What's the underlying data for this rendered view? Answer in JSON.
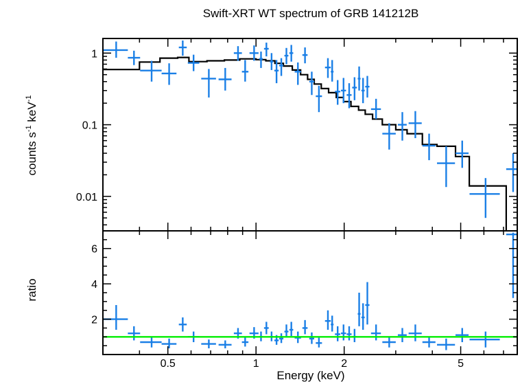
{
  "chart_data": [
    {
      "type": "scatter",
      "title": "Swift-XRT WT spectrum of GRB 141212B",
      "ylabel_main": "counts s",
      "ylabel_sup1": "-1",
      "ylabel_mid": " keV",
      "ylabel_sup2": "-1",
      "xscale": "log",
      "yscale": "log",
      "xlim": [
        0.3,
        7.8
      ],
      "ylim": [
        0.0033,
        1.6
      ],
      "xticks": [
        {
          "v": 0.5,
          "label": "0.5"
        },
        {
          "v": 1,
          "label": "1"
        },
        {
          "v": 2,
          "label": "2"
        },
        {
          "v": 5,
          "label": "5"
        }
      ],
      "yticks": [
        {
          "v": 1,
          "label": "1"
        },
        {
          "v": 0.1,
          "label": "0.1"
        },
        {
          "v": 0.01,
          "label": "0.01"
        }
      ],
      "colors": {
        "data": "#1a7fe6",
        "model": "#000000"
      },
      "data": [
        {
          "x": 0.333,
          "xlo": 0.3,
          "xhi": 0.365,
          "y": 1.1,
          "ylo": 0.86,
          "yhi": 1.45
        },
        {
          "x": 0.383,
          "xlo": 0.365,
          "xhi": 0.402,
          "y": 0.86,
          "ylo": 0.68,
          "yhi": 1.08
        },
        {
          "x": 0.44,
          "xlo": 0.402,
          "xhi": 0.476,
          "y": 0.57,
          "ylo": 0.4,
          "yhi": 0.78
        },
        {
          "x": 0.505,
          "xlo": 0.476,
          "xhi": 0.535,
          "y": 0.52,
          "ylo": 0.36,
          "yhi": 0.72
        },
        {
          "x": 0.562,
          "xlo": 0.545,
          "xhi": 0.58,
          "y": 1.2,
          "ylo": 0.92,
          "yhi": 1.5
        },
        {
          "x": 0.612,
          "xlo": 0.585,
          "xhi": 0.64,
          "y": 0.73,
          "ylo": 0.56,
          "yhi": 0.95
        },
        {
          "x": 0.69,
          "xlo": 0.65,
          "xhi": 0.73,
          "y": 0.44,
          "ylo": 0.24,
          "yhi": 0.6
        },
        {
          "x": 0.785,
          "xlo": 0.745,
          "xhi": 0.825,
          "y": 0.43,
          "ylo": 0.3,
          "yhi": 0.62
        },
        {
          "x": 0.868,
          "xlo": 0.84,
          "xhi": 0.895,
          "y": 1.0,
          "ylo": 0.78,
          "yhi": 1.25
        },
        {
          "x": 0.918,
          "xlo": 0.895,
          "xhi": 0.942,
          "y": 0.55,
          "ylo": 0.4,
          "yhi": 0.8
        },
        {
          "x": 0.985,
          "xlo": 0.95,
          "xhi": 1.02,
          "y": 1.0,
          "ylo": 0.78,
          "yhi": 1.28
        },
        {
          "x": 1.04,
          "xlo": 1.025,
          "xhi": 1.055,
          "y": 0.83,
          "ylo": 0.62,
          "yhi": 1.05
        },
        {
          "x": 1.085,
          "xlo": 1.065,
          "xhi": 1.105,
          "y": 1.15,
          "ylo": 0.9,
          "yhi": 1.4
        },
        {
          "x": 1.13,
          "xlo": 1.115,
          "xhi": 1.145,
          "y": 0.76,
          "ylo": 0.58,
          "yhi": 1.0
        },
        {
          "x": 1.175,
          "xlo": 1.155,
          "xhi": 1.195,
          "y": 0.57,
          "ylo": 0.38,
          "yhi": 0.8
        },
        {
          "x": 1.22,
          "xlo": 1.2,
          "xhi": 1.24,
          "y": 0.67,
          "ylo": 0.48,
          "yhi": 0.85
        },
        {
          "x": 1.27,
          "xlo": 1.25,
          "xhi": 1.29,
          "y": 0.92,
          "ylo": 0.7,
          "yhi": 1.18
        },
        {
          "x": 1.32,
          "xlo": 1.3,
          "xhi": 1.34,
          "y": 1.0,
          "ylo": 0.76,
          "yhi": 1.3
        },
        {
          "x": 1.39,
          "xlo": 1.355,
          "xhi": 1.425,
          "y": 0.55,
          "ylo": 0.36,
          "yhi": 0.74
        },
        {
          "x": 1.47,
          "xlo": 1.44,
          "xhi": 1.5,
          "y": 0.94,
          "ylo": 0.72,
          "yhi": 1.2
        },
        {
          "x": 1.55,
          "xlo": 1.52,
          "xhi": 1.58,
          "y": 0.4,
          "ylo": 0.26,
          "yhi": 0.55
        },
        {
          "x": 1.64,
          "xlo": 1.6,
          "xhi": 1.68,
          "y": 0.25,
          "ylo": 0.15,
          "yhi": 0.35
        },
        {
          "x": 1.76,
          "xlo": 1.72,
          "xhi": 1.8,
          "y": 0.63,
          "ylo": 0.45,
          "yhi": 0.85
        },
        {
          "x": 1.82,
          "xlo": 1.8,
          "xhi": 1.84,
          "y": 0.55,
          "ylo": 0.4,
          "yhi": 0.8
        },
        {
          "x": 1.9,
          "xlo": 1.86,
          "xhi": 1.94,
          "y": 0.29,
          "ylo": 0.19,
          "yhi": 0.42
        },
        {
          "x": 1.99,
          "xlo": 1.95,
          "xhi": 2.03,
          "y": 0.3,
          "ylo": 0.2,
          "yhi": 0.45
        },
        {
          "x": 2.08,
          "xlo": 2.04,
          "xhi": 2.12,
          "y": 0.26,
          "ylo": 0.17,
          "yhi": 0.38
        },
        {
          "x": 2.17,
          "xlo": 2.13,
          "xhi": 2.21,
          "y": 0.33,
          "ylo": 0.22,
          "yhi": 0.46
        },
        {
          "x": 2.25,
          "xlo": 2.225,
          "xhi": 2.275,
          "y": 0.44,
          "ylo": 0.3,
          "yhi": 0.65
        },
        {
          "x": 2.32,
          "xlo": 2.29,
          "xhi": 2.35,
          "y": 0.3,
          "ylo": 0.2,
          "yhi": 0.45
        },
        {
          "x": 2.4,
          "xlo": 2.36,
          "xhi": 2.44,
          "y": 0.34,
          "ylo": 0.24,
          "yhi": 0.48
        },
        {
          "x": 2.57,
          "xlo": 2.47,
          "xhi": 2.67,
          "y": 0.165,
          "ylo": 0.12,
          "yhi": 0.23
        },
        {
          "x": 2.85,
          "xlo": 2.7,
          "xhi": 3.0,
          "y": 0.075,
          "ylo": 0.045,
          "yhi": 0.105
        },
        {
          "x": 3.16,
          "xlo": 3.05,
          "xhi": 3.27,
          "y": 0.1,
          "ylo": 0.06,
          "yhi": 0.15
        },
        {
          "x": 3.5,
          "xlo": 3.32,
          "xhi": 3.68,
          "y": 0.105,
          "ylo": 0.065,
          "yhi": 0.155
        },
        {
          "x": 3.9,
          "xlo": 3.7,
          "xhi": 4.1,
          "y": 0.051,
          "ylo": 0.032,
          "yhi": 0.075
        },
        {
          "x": 4.46,
          "xlo": 4.15,
          "xhi": 4.78,
          "y": 0.029,
          "ylo": 0.0135,
          "yhi": 0.05
        },
        {
          "x": 5.06,
          "xlo": 4.8,
          "xhi": 5.32,
          "y": 0.04,
          "ylo": 0.025,
          "yhi": 0.06
        },
        {
          "x": 6.08,
          "xlo": 5.36,
          "xhi": 6.8,
          "y": 0.0108,
          "ylo": 0.005,
          "yhi": 0.018
        },
        {
          "x": 7.55,
          "xlo": 7.15,
          "xhi": 7.8,
          "y": 0.024,
          "ylo": 0.0115,
          "yhi": 0.04
        }
      ],
      "model": [
        [
          0.3,
          0.59
        ],
        [
          0.4,
          0.59
        ],
        [
          0.4,
          0.75
        ],
        [
          0.47,
          0.75
        ],
        [
          0.47,
          0.85
        ],
        [
          0.54,
          0.85
        ],
        [
          0.54,
          0.87
        ],
        [
          0.59,
          0.87
        ],
        [
          0.59,
          0.76
        ],
        [
          0.68,
          0.76
        ],
        [
          0.68,
          0.78
        ],
        [
          0.78,
          0.78
        ],
        [
          0.78,
          0.8
        ],
        [
          0.88,
          0.8
        ],
        [
          0.88,
          0.83
        ],
        [
          1.0,
          0.83
        ],
        [
          1.0,
          0.81
        ],
        [
          1.08,
          0.81
        ],
        [
          1.08,
          0.78
        ],
        [
          1.16,
          0.78
        ],
        [
          1.16,
          0.72
        ],
        [
          1.24,
          0.72
        ],
        [
          1.24,
          0.66
        ],
        [
          1.33,
          0.66
        ],
        [
          1.33,
          0.58
        ],
        [
          1.42,
          0.58
        ],
        [
          1.42,
          0.5
        ],
        [
          1.5,
          0.5
        ],
        [
          1.5,
          0.43
        ],
        [
          1.58,
          0.43
        ],
        [
          1.58,
          0.37
        ],
        [
          1.67,
          0.37
        ],
        [
          1.67,
          0.32
        ],
        [
          1.77,
          0.32
        ],
        [
          1.77,
          0.28
        ],
        [
          1.88,
          0.28
        ],
        [
          1.88,
          0.24
        ],
        [
          1.99,
          0.24
        ],
        [
          1.99,
          0.21
        ],
        [
          2.11,
          0.21
        ],
        [
          2.11,
          0.18
        ],
        [
          2.24,
          0.18
        ],
        [
          2.24,
          0.16
        ],
        [
          2.36,
          0.16
        ],
        [
          2.36,
          0.14
        ],
        [
          2.5,
          0.14
        ],
        [
          2.5,
          0.12
        ],
        [
          2.7,
          0.12
        ],
        [
          2.7,
          0.1
        ],
        [
          3.0,
          0.1
        ],
        [
          3.0,
          0.085
        ],
        [
          3.28,
          0.085
        ],
        [
          3.28,
          0.075
        ],
        [
          3.7,
          0.075
        ],
        [
          3.7,
          0.053
        ],
        [
          4.15,
          0.053
        ],
        [
          4.15,
          0.05
        ],
        [
          4.8,
          0.05
        ],
        [
          4.8,
          0.036
        ],
        [
          5.35,
          0.036
        ],
        [
          5.35,
          0.014
        ],
        [
          7.15,
          0.014
        ],
        [
          7.15,
          0.0033
        ]
      ]
    },
    {
      "type": "scatter",
      "ylabel": "ratio",
      "xlabel": "Energy (keV)",
      "xscale": "log",
      "xlim": [
        0.3,
        7.8
      ],
      "ylim": [
        0.0,
        7.0
      ],
      "yticks": [
        {
          "v": 2,
          "label": "2"
        },
        {
          "v": 4,
          "label": "4"
        },
        {
          "v": 6,
          "label": "6"
        }
      ],
      "reference_line": 1.0,
      "colors": {
        "data": "#1a7fe6",
        "reference": "#00ee00"
      },
      "data": [
        {
          "x": 0.333,
          "xlo": 0.3,
          "xhi": 0.365,
          "y": 2.0,
          "ylo": 1.4,
          "yhi": 2.8
        },
        {
          "x": 0.383,
          "xlo": 0.365,
          "xhi": 0.402,
          "y": 1.2,
          "ylo": 0.8,
          "yhi": 1.6
        },
        {
          "x": 0.44,
          "xlo": 0.402,
          "xhi": 0.476,
          "y": 0.7,
          "ylo": 0.4,
          "yhi": 1.0
        },
        {
          "x": 0.505,
          "xlo": 0.476,
          "xhi": 0.535,
          "y": 0.6,
          "ylo": 0.35,
          "yhi": 0.9
        },
        {
          "x": 0.562,
          "xlo": 0.545,
          "xhi": 0.58,
          "y": 1.7,
          "ylo": 1.3,
          "yhi": 2.1
        },
        {
          "x": 0.612,
          "xlo": 0.585,
          "xhi": 0.64,
          "y": 1.0,
          "ylo": 0.7,
          "yhi": 1.3
        },
        {
          "x": 0.69,
          "xlo": 0.65,
          "xhi": 0.73,
          "y": 0.6,
          "ylo": 0.35,
          "yhi": 0.85
        },
        {
          "x": 0.785,
          "xlo": 0.745,
          "xhi": 0.825,
          "y": 0.55,
          "ylo": 0.35,
          "yhi": 0.8
        },
        {
          "x": 0.868,
          "xlo": 0.84,
          "xhi": 0.895,
          "y": 1.2,
          "ylo": 0.9,
          "yhi": 1.5
        },
        {
          "x": 0.918,
          "xlo": 0.895,
          "xhi": 0.942,
          "y": 0.7,
          "ylo": 0.45,
          "yhi": 1.0
        },
        {
          "x": 0.985,
          "xlo": 0.95,
          "xhi": 1.02,
          "y": 1.2,
          "ylo": 0.9,
          "yhi": 1.55
        },
        {
          "x": 1.04,
          "xlo": 1.025,
          "xhi": 1.055,
          "y": 1.0,
          "ylo": 0.75,
          "yhi": 1.3
        },
        {
          "x": 1.085,
          "xlo": 1.065,
          "xhi": 1.105,
          "y": 1.5,
          "ylo": 1.15,
          "yhi": 1.85
        },
        {
          "x": 1.13,
          "xlo": 1.115,
          "xhi": 1.145,
          "y": 1.0,
          "ylo": 0.75,
          "yhi": 1.3
        },
        {
          "x": 1.175,
          "xlo": 1.155,
          "xhi": 1.195,
          "y": 0.8,
          "ylo": 0.55,
          "yhi": 1.1
        },
        {
          "x": 1.22,
          "xlo": 1.2,
          "xhi": 1.24,
          "y": 0.9,
          "ylo": 0.65,
          "yhi": 1.2
        },
        {
          "x": 1.27,
          "xlo": 1.25,
          "xhi": 1.29,
          "y": 1.3,
          "ylo": 1.0,
          "yhi": 1.7
        },
        {
          "x": 1.32,
          "xlo": 1.3,
          "xhi": 1.34,
          "y": 1.4,
          "ylo": 1.05,
          "yhi": 1.85
        },
        {
          "x": 1.39,
          "xlo": 1.355,
          "xhi": 1.425,
          "y": 0.95,
          "ylo": 0.65,
          "yhi": 1.3
        },
        {
          "x": 1.47,
          "xlo": 1.44,
          "xhi": 1.5,
          "y": 1.5,
          "ylo": 1.15,
          "yhi": 1.95
        },
        {
          "x": 1.55,
          "xlo": 1.52,
          "xhi": 1.58,
          "y": 0.9,
          "ylo": 0.6,
          "yhi": 1.25
        },
        {
          "x": 1.64,
          "xlo": 1.6,
          "xhi": 1.68,
          "y": 0.65,
          "ylo": 0.4,
          "yhi": 0.95
        },
        {
          "x": 1.76,
          "xlo": 1.72,
          "xhi": 1.8,
          "y": 1.9,
          "ylo": 1.4,
          "yhi": 2.5
        },
        {
          "x": 1.82,
          "xlo": 1.8,
          "xhi": 1.84,
          "y": 1.7,
          "ylo": 1.3,
          "yhi": 2.2
        },
        {
          "x": 1.9,
          "xlo": 1.86,
          "xhi": 1.94,
          "y": 1.15,
          "ylo": 0.75,
          "yhi": 1.6
        },
        {
          "x": 1.99,
          "xlo": 1.95,
          "xhi": 2.03,
          "y": 1.2,
          "ylo": 0.8,
          "yhi": 1.7
        },
        {
          "x": 2.08,
          "xlo": 2.04,
          "xhi": 2.12,
          "y": 1.15,
          "ylo": 0.8,
          "yhi": 1.6
        },
        {
          "x": 2.17,
          "xlo": 2.13,
          "xhi": 2.21,
          "y": 1.0,
          "ylo": 0.7,
          "yhi": 1.45
        },
        {
          "x": 2.25,
          "xlo": 2.225,
          "xhi": 2.275,
          "y": 2.3,
          "ylo": 1.6,
          "yhi": 3.5
        },
        {
          "x": 2.32,
          "xlo": 2.29,
          "xhi": 2.35,
          "y": 2.1,
          "ylo": 1.4,
          "yhi": 2.9
        },
        {
          "x": 2.4,
          "xlo": 2.36,
          "xhi": 2.44,
          "y": 2.8,
          "ylo": 1.7,
          "yhi": 4.1
        },
        {
          "x": 2.57,
          "xlo": 2.47,
          "xhi": 2.67,
          "y": 1.2,
          "ylo": 0.8,
          "yhi": 1.7
        },
        {
          "x": 2.85,
          "xlo": 2.7,
          "xhi": 3.0,
          "y": 0.7,
          "ylo": 0.4,
          "yhi": 1.0
        },
        {
          "x": 3.16,
          "xlo": 3.05,
          "xhi": 3.27,
          "y": 1.1,
          "ylo": 0.7,
          "yhi": 1.5
        },
        {
          "x": 3.5,
          "xlo": 3.32,
          "xhi": 3.68,
          "y": 1.2,
          "ylo": 0.75,
          "yhi": 1.7
        },
        {
          "x": 3.9,
          "xlo": 3.7,
          "xhi": 4.1,
          "y": 0.7,
          "ylo": 0.4,
          "yhi": 1.0
        },
        {
          "x": 4.46,
          "xlo": 4.15,
          "xhi": 4.78,
          "y": 0.55,
          "ylo": 0.25,
          "yhi": 0.9
        },
        {
          "x": 5.06,
          "xlo": 4.8,
          "xhi": 5.32,
          "y": 1.1,
          "ylo": 0.7,
          "yhi": 1.5
        },
        {
          "x": 6.08,
          "xlo": 5.36,
          "xhi": 6.8,
          "y": 0.85,
          "ylo": 0.4,
          "yhi": 1.3
        },
        {
          "x": 7.55,
          "xlo": 7.15,
          "xhi": 7.8,
          "y": 6.8,
          "ylo": 3.2,
          "yhi": 6.9
        }
      ]
    }
  ]
}
